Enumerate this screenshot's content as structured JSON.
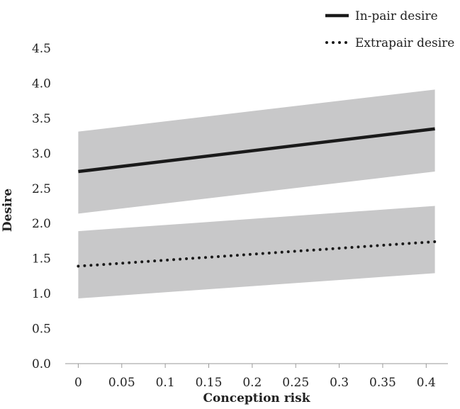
{
  "chart_data": {
    "type": "line",
    "title": "",
    "xlabel": "Conception risk",
    "ylabel": "Desire",
    "x_ticks": [
      0,
      0.05,
      0.1,
      0.15,
      0.2,
      0.25,
      0.3,
      0.35,
      0.4
    ],
    "x_tick_labels": [
      "0",
      "0.05",
      "0.1",
      "0.15",
      "0.2",
      "0.25",
      "0.3",
      "0.35",
      "0.4"
    ],
    "y_ticks": [
      0,
      0.5,
      1.0,
      1.5,
      2.0,
      2.5,
      3.0,
      3.5,
      4.0,
      4.5
    ],
    "y_tick_labels": [
      "0.0",
      "0.5",
      "1.0",
      "1.5",
      "2.0",
      "2.5",
      "3.0",
      "3.5",
      "4.0",
      "4.5"
    ],
    "xlim": [
      -0.015,
      0.425
    ],
    "ylim": [
      0,
      4.5
    ],
    "grid": false,
    "legend_position": "top-right",
    "series": [
      {
        "name": "In-pair desire",
        "style": "solid",
        "x": [
          0,
          0.41
        ],
        "y": [
          2.74,
          3.35
        ],
        "ci_lower": [
          2.14,
          2.74
        ],
        "ci_upper": [
          3.31,
          3.91
        ]
      },
      {
        "name": "Extrapair desire",
        "style": "dotted",
        "x": [
          0,
          0.41
        ],
        "y": [
          1.39,
          1.74
        ],
        "ci_lower": [
          0.93,
          1.29
        ],
        "ci_upper": [
          1.89,
          2.25
        ]
      }
    ],
    "colors": {
      "line": "#1a1a1a",
      "band": "#c8c8c9",
      "axis": "#9a9a9a"
    }
  }
}
